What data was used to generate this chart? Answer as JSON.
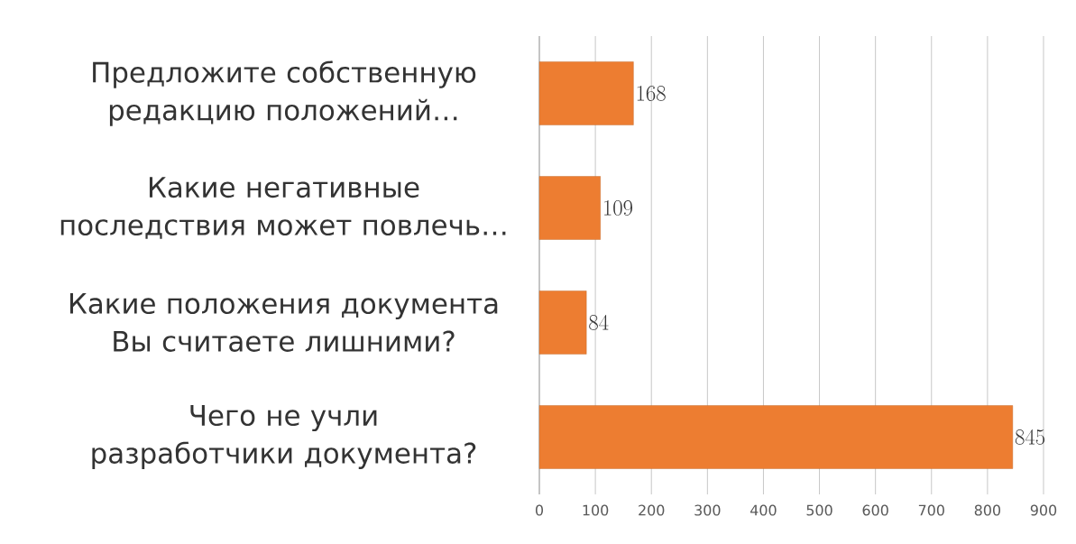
{
  "chart_data": {
    "type": "bar",
    "orientation": "horizontal",
    "categories": [
      "Предложите собственную редакцию положений…",
      "Какие негативные последствия может повлечь…",
      "Какие положения документа Вы считаете лишними?",
      "Чего не учли разработчики документа?"
    ],
    "values": [
      168,
      109,
      84,
      845
    ],
    "color": "#ed7d31",
    "xlim": [
      0,
      900
    ],
    "xticks": [
      0,
      100,
      200,
      300,
      400,
      500,
      600,
      700,
      800,
      900
    ],
    "grid": "x",
    "data_labels": true
  }
}
